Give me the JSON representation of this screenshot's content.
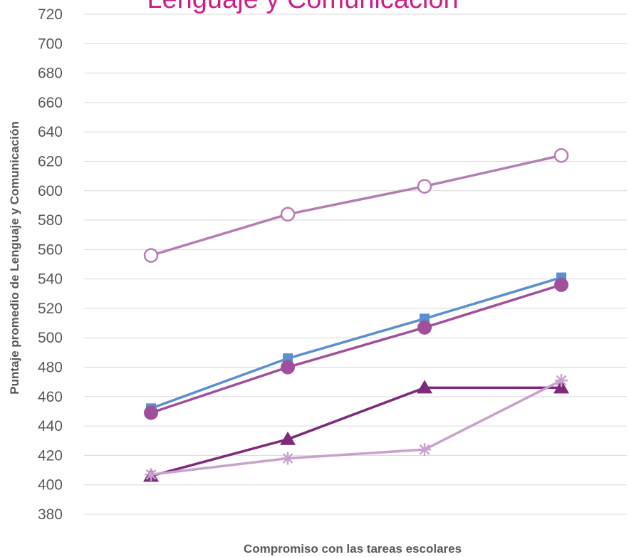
{
  "chart_data": {
    "type": "line",
    "title": "Lenguaje y Comunicación",
    "xlabel": "Compromiso con las tareas escolares",
    "ylabel": "Puntaje promedio de Lenguaje y Comunicación",
    "ylim": [
      380,
      720
    ],
    "yticks": [
      380,
      400,
      420,
      440,
      460,
      480,
      500,
      520,
      540,
      560,
      580,
      600,
      620,
      640,
      660,
      680,
      700,
      720
    ],
    "categories": [
      "",
      "",
      "",
      ""
    ],
    "grid": true,
    "series": [
      {
        "values": [
          556,
          584,
          603,
          624
        ],
        "color": "#b37fb3",
        "marker": "open-circle"
      },
      {
        "values": [
          452,
          486,
          513,
          541
        ],
        "color": "#5b8fd1",
        "marker": "square"
      },
      {
        "values": [
          449,
          480,
          507,
          536
        ],
        "color": "#a0509a",
        "marker": "circle"
      },
      {
        "values": [
          406,
          431,
          466,
          466
        ],
        "color": "#7d2a7a",
        "marker": "triangle"
      },
      {
        "values": [
          407,
          418,
          424,
          471
        ],
        "color": "#c8a2cc",
        "marker": "asterisk"
      }
    ]
  }
}
